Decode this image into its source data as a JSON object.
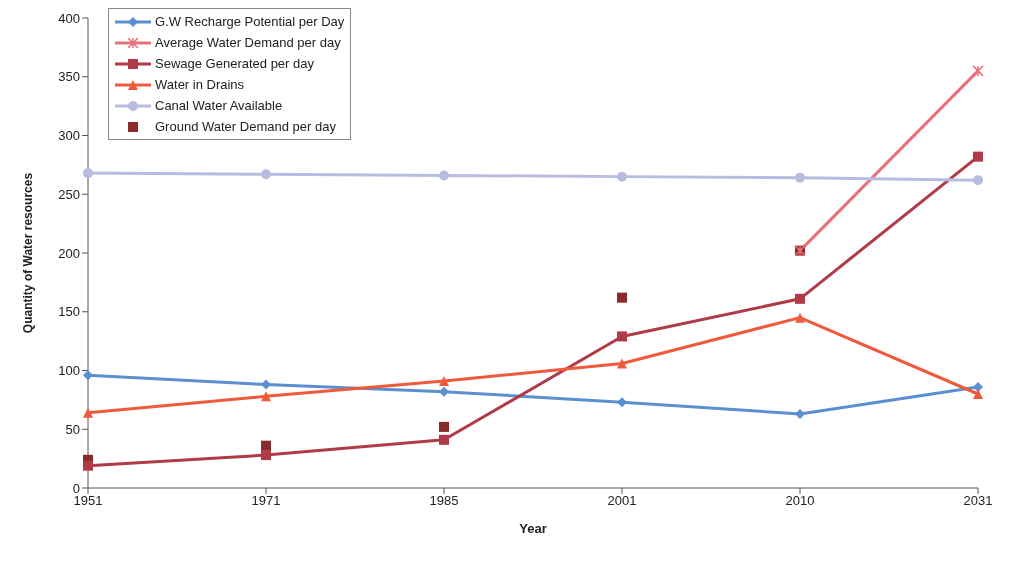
{
  "chart_data": {
    "type": "line",
    "categories": [
      "1951",
      "1971",
      "1985",
      "2001",
      "2010",
      "2031"
    ],
    "xlabel": "Year",
    "ylabel": "Quantity of Water resources",
    "ylim": [
      0,
      400
    ],
    "yticks": [
      0,
      50,
      100,
      150,
      200,
      250,
      300,
      350,
      400
    ],
    "grid": false,
    "legend": "top left",
    "series": [
      {
        "name": "G.W Recharge Potential per Day",
        "color": "#5b8fd0",
        "marker": "diamond",
        "values": [
          96,
          88,
          82,
          73,
          63,
          86
        ]
      },
      {
        "name": "Average  Water Demand per day",
        "color": "#e8707a",
        "marker": "cross",
        "values": [
          null,
          null,
          null,
          null,
          202,
          355
        ]
      },
      {
        "name": "Sewage Generated per day",
        "color": "#b03a48",
        "marker": "square",
        "values": [
          19,
          28,
          41,
          129,
          161,
          282
        ]
      },
      {
        "name": "Water in Drains",
        "color": "#f05a3c",
        "marker": "triangle",
        "values": [
          64,
          78,
          91,
          106,
          145,
          80
        ]
      },
      {
        "name": "Canal Water Available",
        "color": "#b8bde0",
        "marker": "circle",
        "values": [
          268,
          267,
          266,
          265,
          264,
          262
        ]
      },
      {
        "name": "Ground Water Demand per day",
        "type": "scatter",
        "color": "#8b2a2a",
        "marker": "square",
        "values": [
          24,
          36,
          52,
          162,
          202,
          null
        ]
      }
    ]
  }
}
